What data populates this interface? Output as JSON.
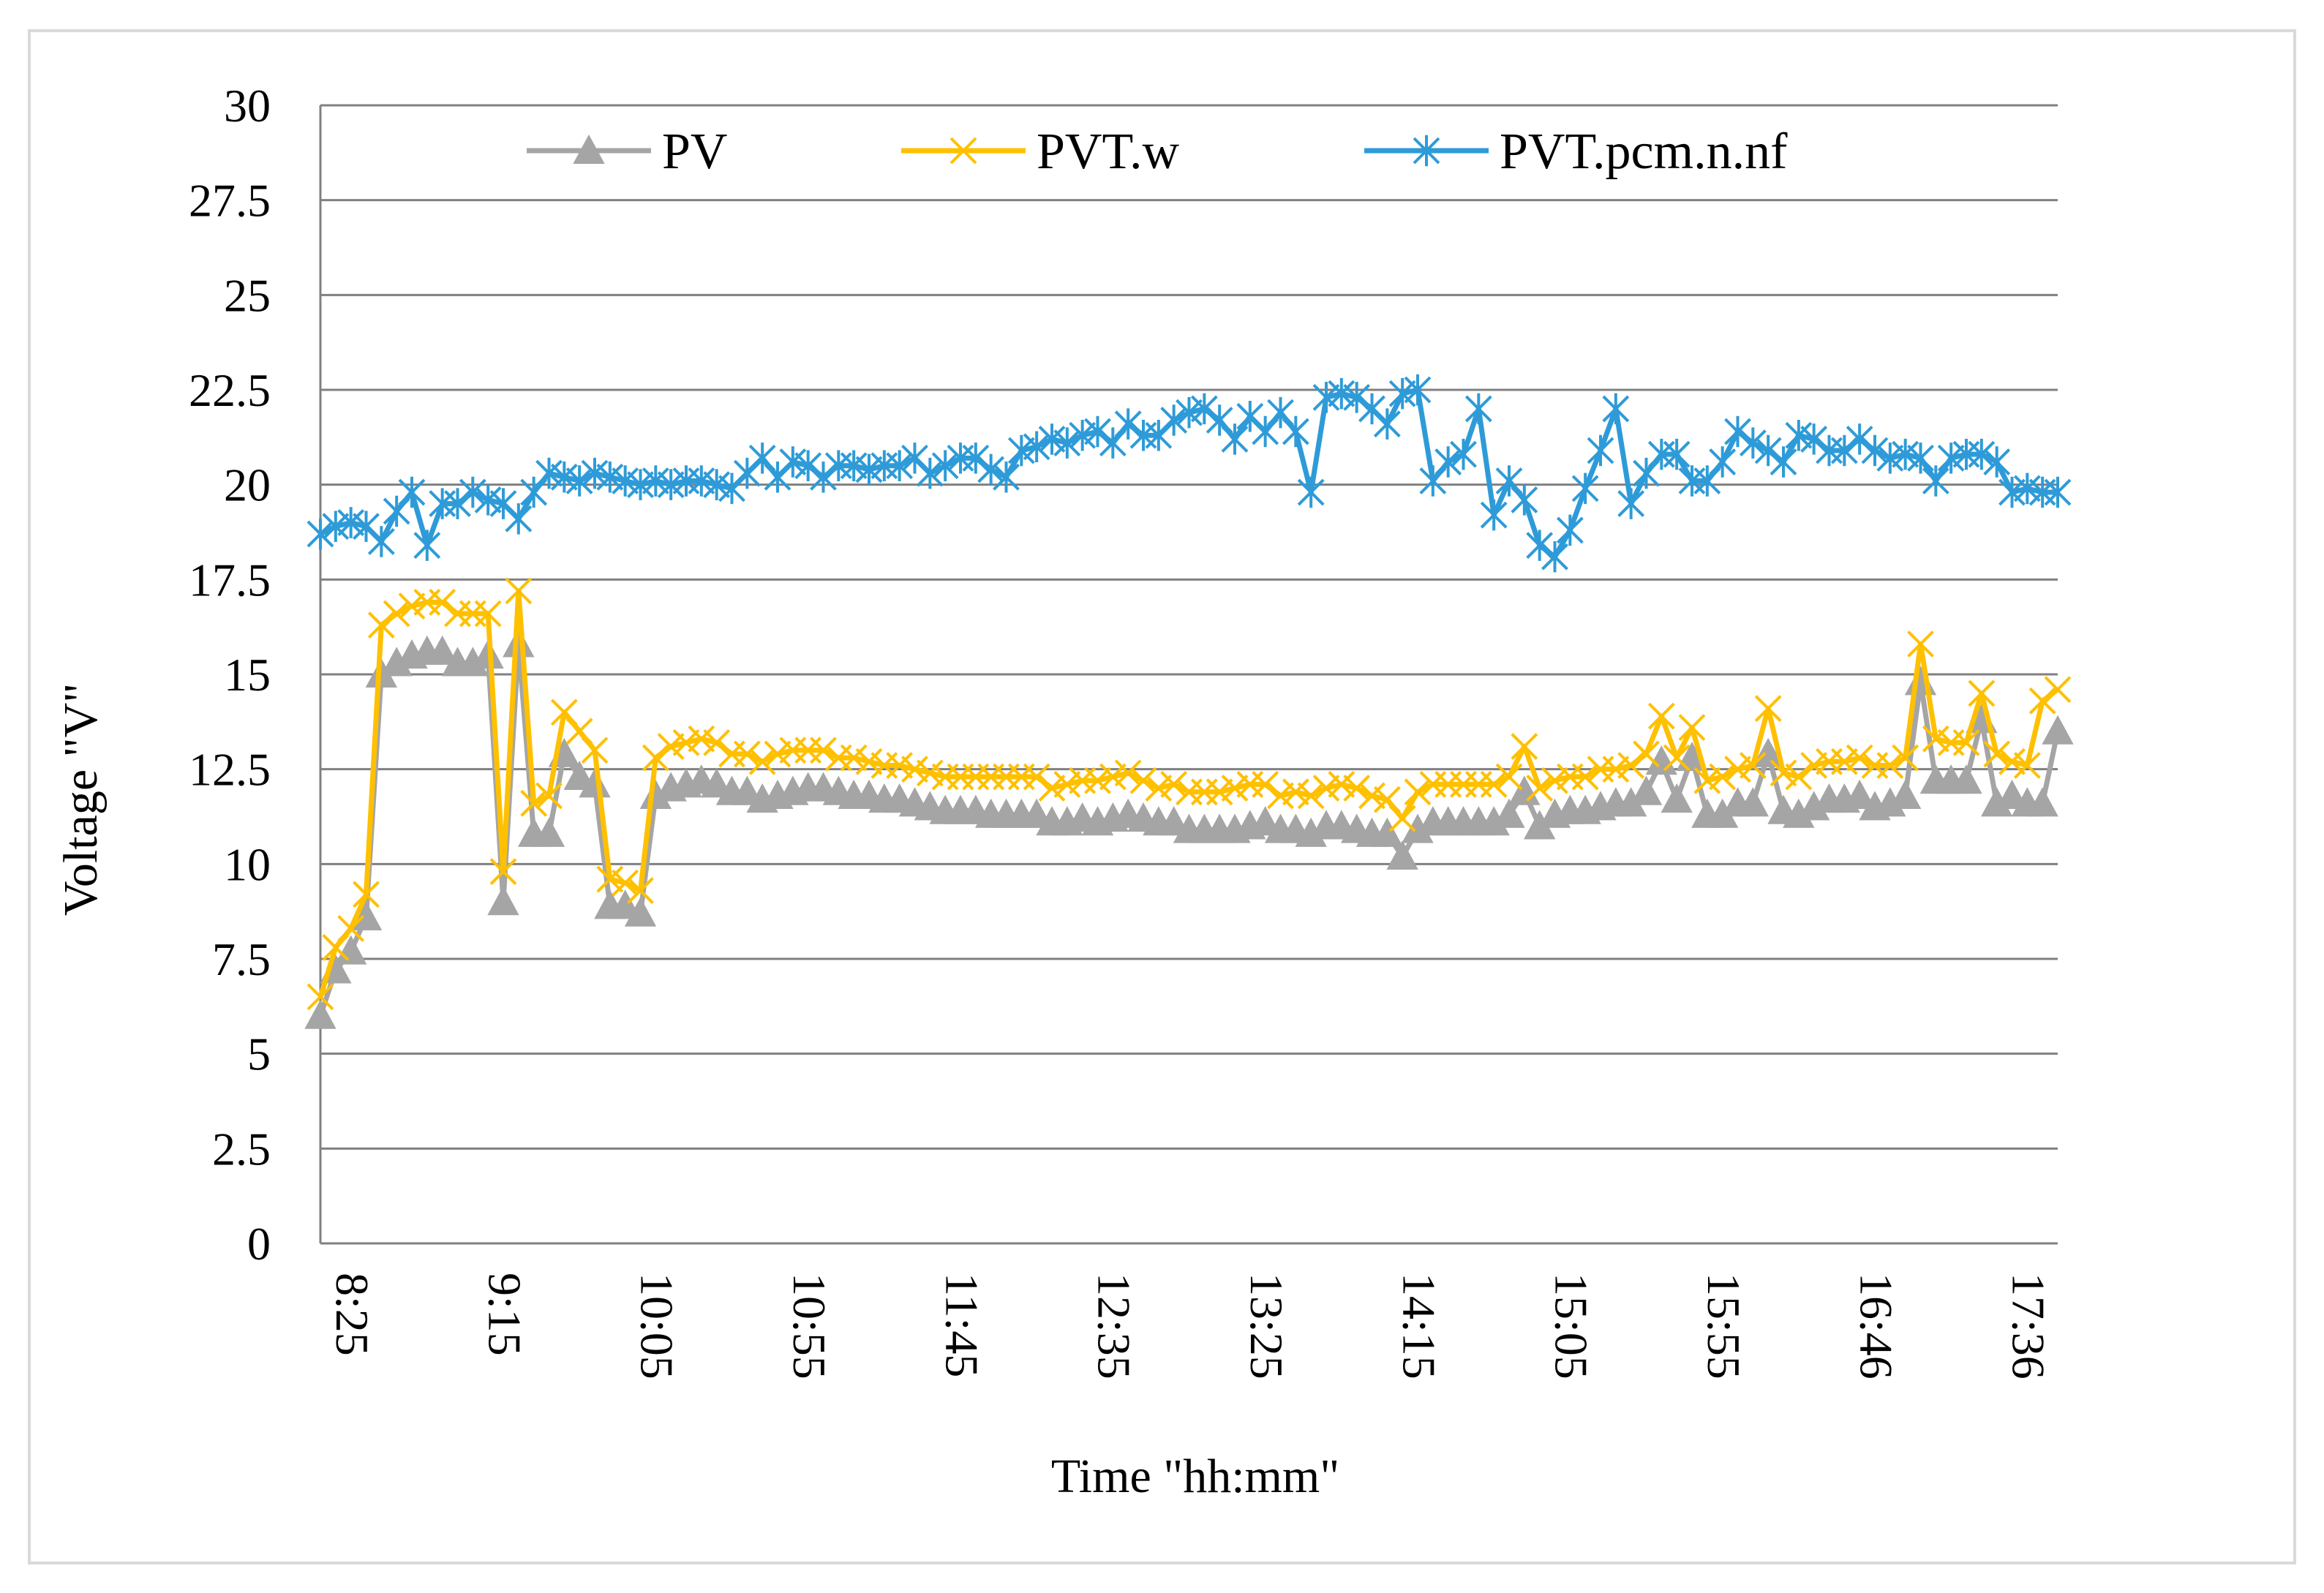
{
  "colors": {
    "PV": "#A5A5A5",
    "PVT.w": "#FFC000",
    "PVT.pcm.n.nf": "#2E9BD8",
    "grid": "#808080",
    "frame": "#D9D9D9"
  },
  "chart_data": {
    "type": "line",
    "xlabel": "Time \"hh:mm\"",
    "ylabel": "Voltage \"V\"",
    "ylim": [
      0,
      30
    ],
    "yticks": [
      "0",
      "2.5",
      "5",
      "7.5",
      "10",
      "12.5",
      "15",
      "17.5",
      "20",
      "22.5",
      "25",
      "27.5",
      "30"
    ],
    "x_tick_labels": [
      "8:25",
      "9:15",
      "10:05",
      "10:55",
      "11:45",
      "12:35",
      "13:25",
      "14:15",
      "15:05",
      "15:55",
      "16:46",
      "17:36"
    ],
    "x_tick_label_every": 10,
    "x_point_count": 115,
    "grid": "horizontal",
    "legend_position": "top",
    "series": [
      {
        "name": "PV",
        "marker": "triangle",
        "values": [
          6.0,
          7.2,
          7.7,
          8.6,
          15.0,
          15.3,
          15.5,
          15.6,
          15.6,
          15.3,
          15.3,
          15.5,
          9.0,
          15.8,
          10.8,
          10.8,
          12.9,
          12.3,
          12.1,
          8.9,
          8.9,
          8.7,
          11.8,
          12.0,
          12.1,
          12.2,
          12.1,
          11.9,
          11.9,
          11.7,
          11.8,
          11.9,
          12.0,
          12.0,
          11.9,
          11.8,
          11.8,
          11.7,
          11.7,
          11.6,
          11.5,
          11.4,
          11.4,
          11.4,
          11.3,
          11.3,
          11.3,
          11.3,
          11.1,
          11.1,
          11.2,
          11.1,
          11.2,
          11.3,
          11.2,
          11.1,
          11.1,
          10.9,
          10.9,
          10.9,
          10.9,
          11.0,
          11.1,
          10.9,
          10.9,
          10.8,
          11.0,
          11.0,
          10.9,
          10.8,
          10.8,
          10.2,
          10.9,
          11.1,
          11.1,
          11.1,
          11.1,
          11.1,
          11.3,
          11.9,
          11.0,
          11.3,
          11.4,
          11.4,
          11.5,
          11.6,
          11.6,
          11.9,
          12.7,
          11.7,
          12.8,
          11.3,
          11.3,
          11.6,
          11.6,
          12.9,
          11.4,
          11.3,
          11.5,
          11.7,
          11.7,
          11.8,
          11.5,
          11.6,
          11.8,
          14.8,
          12.2,
          12.2,
          12.2,
          13.8,
          11.6,
          11.8,
          11.6,
          11.6,
          13.5
        ]
      },
      {
        "name": "PVT.w",
        "marker": "x",
        "values": [
          6.5,
          7.8,
          8.3,
          9.2,
          16.3,
          16.6,
          16.8,
          16.9,
          16.9,
          16.6,
          16.6,
          16.6,
          9.8,
          17.2,
          11.6,
          11.8,
          14.0,
          13.5,
          13.0,
          9.6,
          9.5,
          9.3,
          12.8,
          13.1,
          13.2,
          13.3,
          13.2,
          12.9,
          12.9,
          12.7,
          12.9,
          13.0,
          13.0,
          13.0,
          12.8,
          12.8,
          12.7,
          12.6,
          12.6,
          12.5,
          12.4,
          12.3,
          12.3,
          12.3,
          12.3,
          12.3,
          12.3,
          12.3,
          12.0,
          12.1,
          12.2,
          12.2,
          12.3,
          12.4,
          12.2,
          12.0,
          12.1,
          11.9,
          11.9,
          11.9,
          12.0,
          12.1,
          12.1,
          11.8,
          11.9,
          11.8,
          12.0,
          12.1,
          12.0,
          11.8,
          11.7,
          11.2,
          11.9,
          12.1,
          12.1,
          12.1,
          12.1,
          12.1,
          12.3,
          13.1,
          12.0,
          12.2,
          12.3,
          12.3,
          12.5,
          12.5,
          12.6,
          12.9,
          13.9,
          12.8,
          13.6,
          12.2,
          12.3,
          12.5,
          12.6,
          14.1,
          12.4,
          12.3,
          12.6,
          12.7,
          12.7,
          12.8,
          12.6,
          12.6,
          12.8,
          15.8,
          13.3,
          13.2,
          13.2,
          14.5,
          12.9,
          12.7,
          12.6,
          14.3,
          14.6
        ]
      },
      {
        "name": "PVT.pcm.n.nf",
        "marker": "asterisk",
        "values": [
          18.7,
          18.9,
          19.0,
          18.9,
          18.5,
          19.3,
          19.8,
          18.4,
          19.5,
          19.5,
          19.8,
          19.6,
          19.5,
          19.1,
          19.8,
          20.3,
          20.2,
          20.1,
          20.3,
          20.2,
          20.1,
          20.0,
          20.1,
          20.0,
          20.1,
          20.1,
          20.0,
          19.9,
          20.3,
          20.7,
          20.2,
          20.6,
          20.5,
          20.2,
          20.5,
          20.5,
          20.4,
          20.5,
          20.5,
          20.7,
          20.3,
          20.5,
          20.7,
          20.7,
          20.4,
          20.2,
          20.9,
          21.0,
          21.2,
          21.1,
          21.3,
          21.4,
          21.1,
          21.6,
          21.3,
          21.3,
          21.7,
          21.9,
          22.0,
          21.7,
          21.2,
          21.8,
          21.4,
          21.9,
          21.4,
          19.8,
          22.3,
          22.4,
          22.3,
          22.0,
          21.6,
          22.4,
          22.5,
          20.1,
          20.6,
          20.8,
          22.0,
          19.2,
          20.1,
          19.6,
          18.4,
          18.1,
          18.8,
          19.9,
          20.9,
          22.0,
          19.5,
          20.3,
          20.8,
          20.8,
          20.1,
          20.1,
          20.6,
          21.4,
          21.1,
          20.9,
          20.6,
          21.3,
          21.2,
          20.9,
          20.9,
          21.2,
          20.9,
          20.7,
          20.8,
          20.7,
          20.1,
          20.7,
          20.8,
          20.8,
          20.6,
          19.8,
          19.9,
          19.8,
          19.8
        ]
      }
    ]
  }
}
